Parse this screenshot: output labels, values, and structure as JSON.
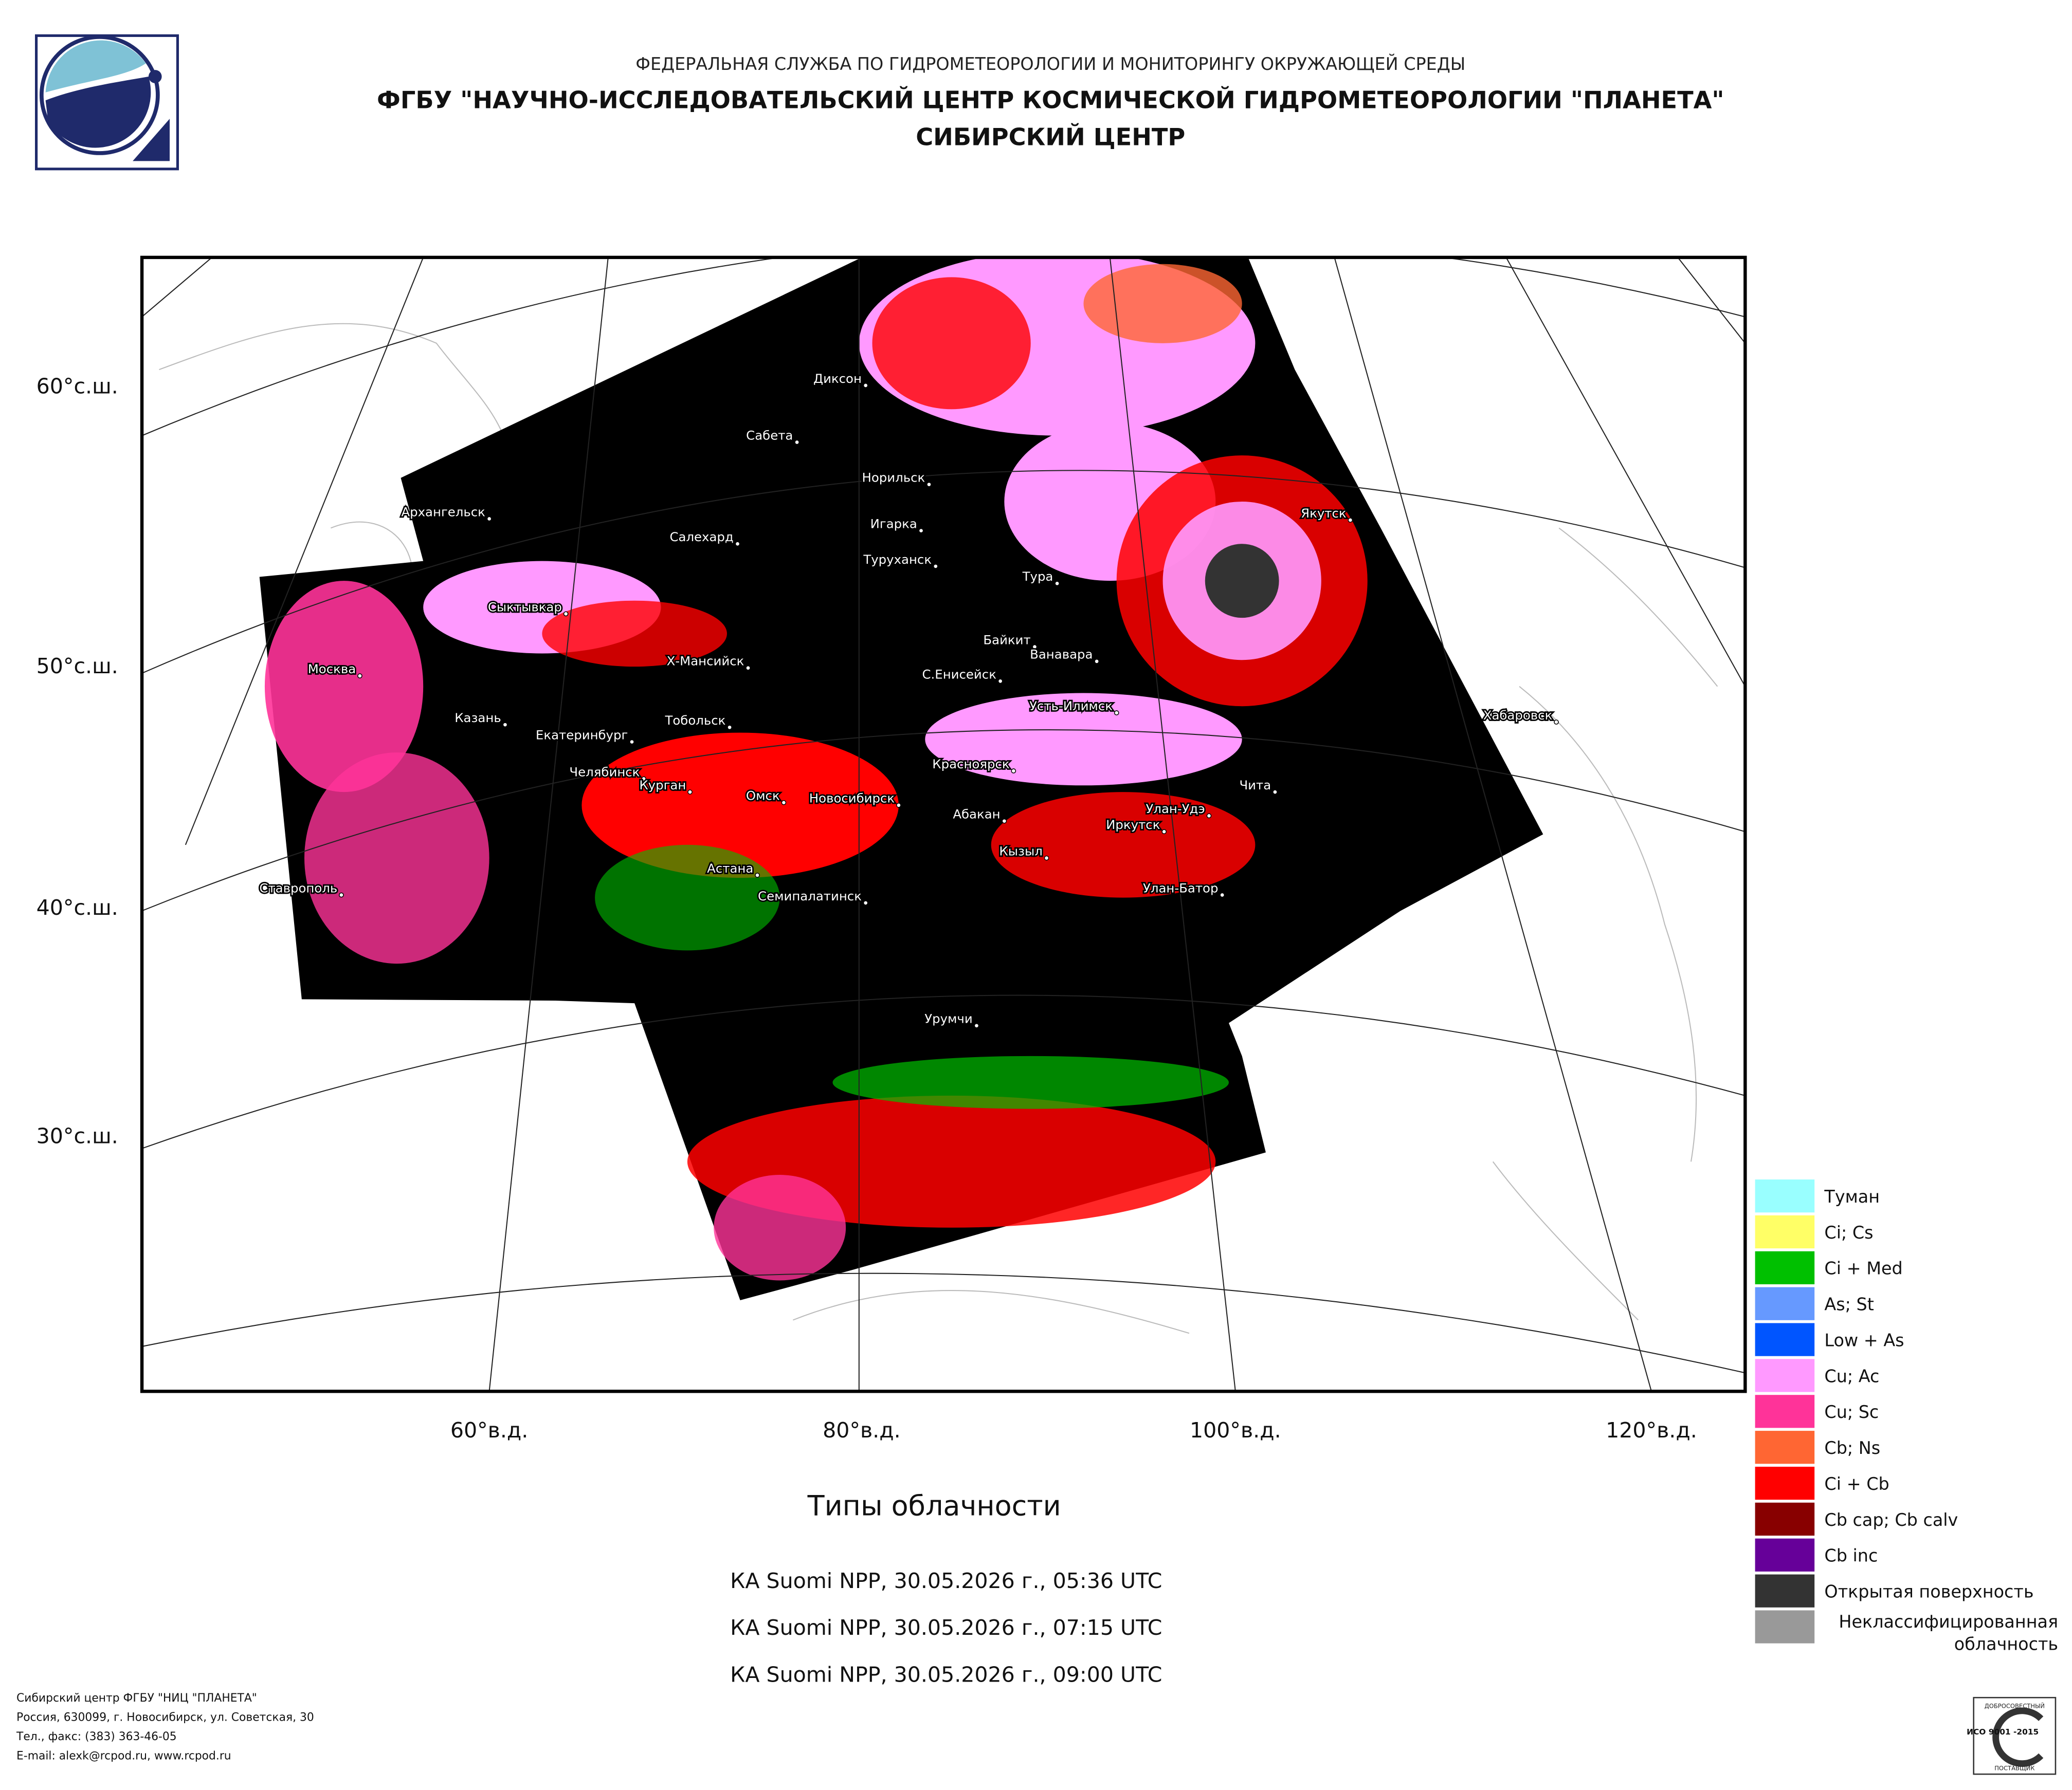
{
  "header": {
    "agency": "ФЕДЕРАЛЬНАЯ СЛУЖБА ПО ГИДРОМЕТЕОРОЛОГИИ И МОНИТОРИНГУ ОКРУЖАЮЩЕЙ СРЕДЫ",
    "center": "ФГБУ \"НАУЧНО-ИССЛЕДОВАТЕЛЬСКИЙ ЦЕНТР КОСМИЧЕСКОЙ ГИДРОМЕТЕОРОЛОГИИ \"ПЛАНЕТА\"",
    "division": "СИБИРСКИЙ ЦЕНТР"
  },
  "map": {
    "lat_labels": [
      "60°с.ш.",
      "50°с.ш.",
      "40°с.ш.",
      "30°с.ш."
    ],
    "lon_labels": [
      "60°в.д.",
      "80°в.д.",
      "100°в.д.",
      "120°в.д."
    ],
    "cities": [
      "Диксон",
      "Сабета",
      "Норильск",
      "Архангельск",
      "Игарка",
      "Салехард",
      "Туруханск",
      "Якутск",
      "Тура",
      "Сыктывкар",
      "Байкит",
      "Ванавара",
      "Москва",
      "Х-Мансийск",
      "С.Енисейск",
      "Усть-Илимск",
      "Хабаровск",
      "Казань",
      "Тобольск",
      "Екатеринбург",
      "Красноярск",
      "Челябинск",
      "Курган",
      "Омск",
      "Чита",
      "Новосибирск",
      "Улан-Удэ",
      "Абакан",
      "Иркутск",
      "Кызыл",
      "Астана",
      "Ставрополь",
      "Улан-Батор",
      "Семипалатинск",
      "Урумчи"
    ]
  },
  "legend": [
    {
      "name": "Туман",
      "color": "#99ffff"
    },
    {
      "name": "Ci; Cs",
      "color": "#ffff66"
    },
    {
      "name": "Ci + Med",
      "color": "#00c000"
    },
    {
      "name": "As; St",
      "color": "#6699ff"
    },
    {
      "name": "Low + As",
      "color": "#0055ff"
    },
    {
      "name": "Cu; Ac",
      "color": "#ff99ff"
    },
    {
      "name": "Cu; Sc",
      "color": "#ff3399"
    },
    {
      "name": "Cb; Ns",
      "color": "#ff6633"
    },
    {
      "name": "Ci + Cb",
      "color": "#ff0000"
    },
    {
      "name": "Cb cap; Cb calv",
      "color": "#880000"
    },
    {
      "name": "Cb inc",
      "color": "#660099"
    },
    {
      "name": "Открытая поверхность",
      "color": "#333333"
    },
    {
      "name": "Неклассифицированная облачность",
      "color": "#999999"
    }
  ],
  "caption": "Типы облачности",
  "passes": [
    "КА Suomi NPP, 30.05.2026 г., 05:36 UTC",
    "КА Suomi NPP, 30.05.2026 г., 07:15 UTC",
    "КА Suomi NPP, 30.05.2026 г., 09:00 UTC"
  ],
  "footer": [
    "Сибирский центр ФГБУ \"НИЦ \"ПЛАНЕТА\"",
    "Россия, 630099, г. Новосибирск, ул. Советская, 30",
    "Тел., факс: (383) 363-46-05",
    "E-mail: alexk@rcpod.ru, www.rcpod.ru"
  ],
  "badge": {
    "top": "ДОБРОСОВЕСТНЫЙ",
    "standard": "ИСО 9001 -2015",
    "bottom": "ПОСТАВЩИК"
  }
}
